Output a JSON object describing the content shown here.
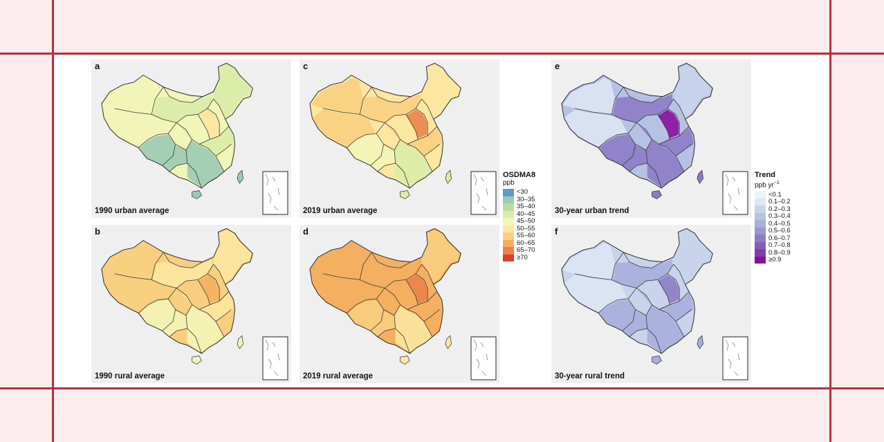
{
  "panels": [
    {
      "id": "a",
      "label": "a",
      "title": "1990 urban average",
      "legend": "ozone",
      "shading": {
        "base": 4,
        "se": 1,
        "sw": 1,
        "ne": 3,
        "nw": 4,
        "center": 3,
        "ncp": 5
      }
    },
    {
      "id": "b",
      "label": "b",
      "title": "1990 rural average",
      "legend": "ozone",
      "shading": {
        "base": 6,
        "se": 4,
        "sw": 4,
        "ne": 5,
        "nw": 6,
        "center": 5,
        "ncp": 7
      }
    },
    {
      "id": "c",
      "label": "c",
      "title": "2019 urban average",
      "legend": "ozone",
      "shading": {
        "base": 5,
        "se": 3,
        "sw": 4,
        "ne": 5,
        "nw": 6,
        "center": 6,
        "ncp": 8
      }
    },
    {
      "id": "d",
      "label": "d",
      "title": "2019 rural average",
      "legend": "ozone",
      "shading": {
        "base": 7,
        "se": 5,
        "sw": 6,
        "ne": 6,
        "nw": 7,
        "center": 7,
        "ncp": 8
      }
    },
    {
      "id": "e",
      "label": "e",
      "title": "30-year urban trend",
      "legend": "trend",
      "shading": {
        "base": 3,
        "se": 6,
        "sw": 6,
        "ne": 2,
        "nw": 1,
        "center": 6,
        "ncp": 9
      }
    },
    {
      "id": "f",
      "label": "f",
      "title": "30-year rural trend",
      "legend": "trend",
      "shading": {
        "base": 2,
        "se": 4,
        "sw": 4,
        "ne": 2,
        "nw": 1,
        "center": 4,
        "ncp": 6
      }
    }
  ],
  "legend_ozone": {
    "title": "OSDMA8",
    "unit": "ppb",
    "bins": [
      {
        "label": "<30",
        "color": "#5f99c7"
      },
      {
        "label": "30–35",
        "color": "#9ccbb5"
      },
      {
        "label": "35–40",
        "color": "#b8dba5"
      },
      {
        "label": "40–45",
        "color": "#d9eca7"
      },
      {
        "label": "45–50",
        "color": "#f2f5b8"
      },
      {
        "label": "50–55",
        "color": "#fbe7a0"
      },
      {
        "label": "55–60",
        "color": "#f8cf80"
      },
      {
        "label": "60–65",
        "color": "#f4b060"
      },
      {
        "label": "65–70",
        "color": "#ea834a"
      },
      {
        "label": "≥70",
        "color": "#d7422a"
      }
    ]
  },
  "legend_trend": {
    "title": "Trend",
    "unit_base": "ppb yr",
    "unit_sup": "−1",
    "bins": [
      {
        "label": "<0.1",
        "color": "#eef3fb"
      },
      {
        "label": "0.1–0.2",
        "color": "#dde6f4"
      },
      {
        "label": "0.2–0.3",
        "color": "#c9d4ec"
      },
      {
        "label": "0.3–0.4",
        "color": "#b6c2e4"
      },
      {
        "label": "0.4–0.5",
        "color": "#a7aedb"
      },
      {
        "label": "0.5–0.6",
        "color": "#9995d0"
      },
      {
        "label": "0.6–0.7",
        "color": "#8d7cc5"
      },
      {
        "label": "0.7–0.8",
        "color": "#8260b9"
      },
      {
        "label": "0.8–0.9",
        "color": "#7a3fac"
      },
      {
        "label": "≥0.9",
        "color": "#8a0f9e"
      }
    ]
  }
}
